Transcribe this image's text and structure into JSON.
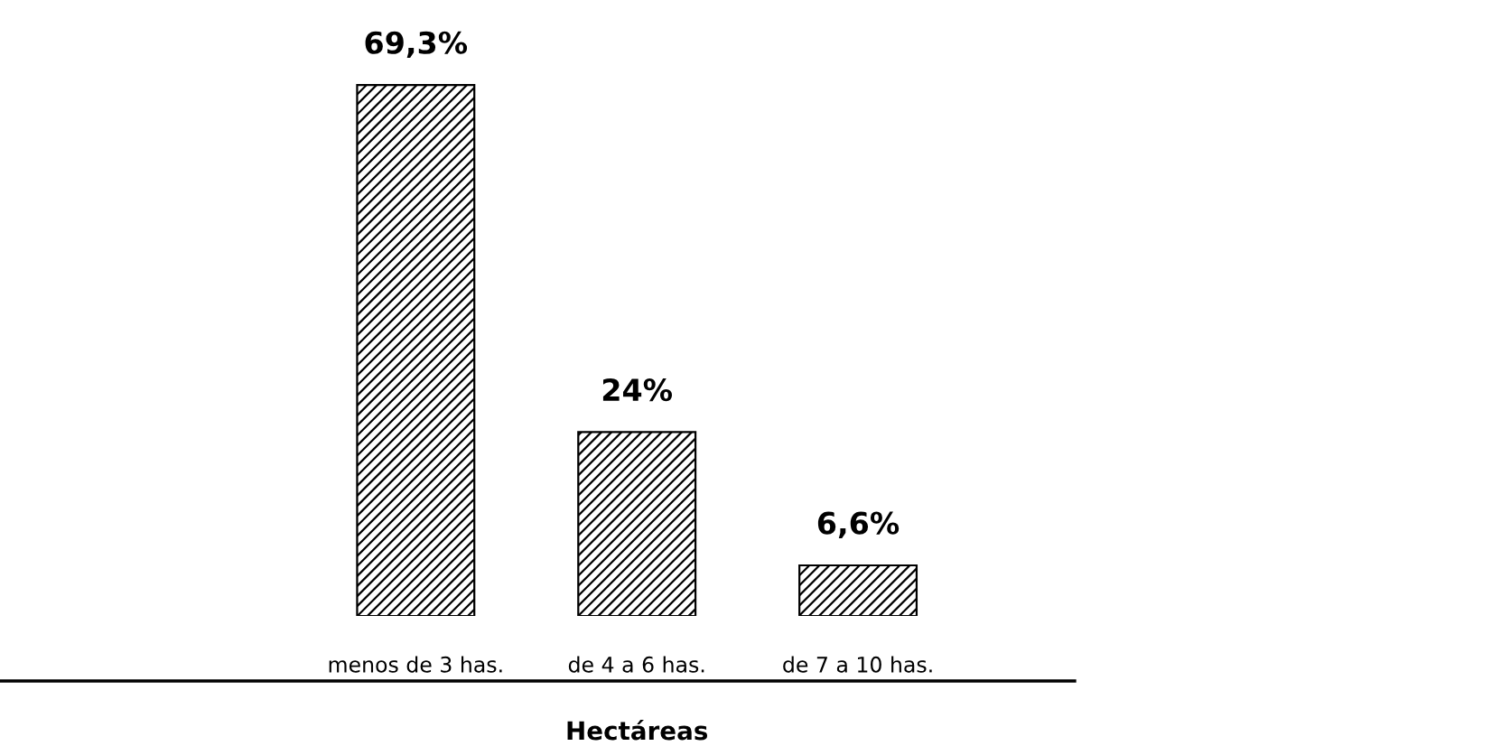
{
  "chart_data": {
    "type": "bar",
    "xlabel": "Hectáreas",
    "categories": [
      "menos de 3 has.",
      "de 4 a 6 has.",
      "de 7 a 10 has."
    ],
    "values": [
      69.3,
      24,
      6.6
    ],
    "value_labels": [
      "69,3%",
      "24%",
      "6,6%"
    ],
    "color": "#000000",
    "grid": false,
    "legend": false
  }
}
